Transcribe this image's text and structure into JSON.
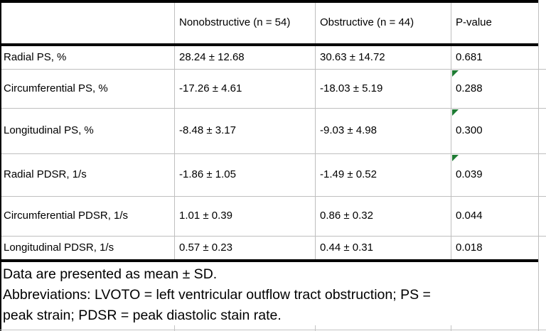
{
  "table": {
    "header": {
      "col0": "",
      "col1": "Nonobstructive (n = 54)",
      "col2": "Obstructive (n = 44)",
      "col3": "P-value"
    },
    "rows": [
      {
        "label": "Radial PS, %",
        "nonobstructive": "28.24 ± 12.68",
        "obstructive": "30.63 ± 14.72",
        "p_value": "0.681",
        "flagged": false
      },
      {
        "label": "Circumferential PS, %",
        "nonobstructive": "-17.26 ± 4.61",
        "obstructive": "-18.03 ± 5.19",
        "p_value": "0.288",
        "flagged": true
      },
      {
        "label": "Longitudinal PS, %",
        "nonobstructive": "-8.48 ± 3.17",
        "obstructive": "-9.03 ± 4.98",
        "p_value": "0.300",
        "flagged": true
      },
      {
        "label": "Radial PDSR, 1/s",
        "nonobstructive": "-1.86 ± 1.05",
        "obstructive": "-1.49 ± 0.52",
        "p_value": "0.039",
        "flagged": true
      },
      {
        "label": "Circumferential PDSR, 1/s",
        "nonobstructive": "1.01 ± 0.39",
        "obstructive": "0.86 ± 0.32",
        "p_value": "0.044",
        "flagged": false
      },
      {
        "label": "Longitudinal PDSR, 1/s",
        "nonobstructive": "0.57 ± 0.23",
        "obstructive": "0.44 ± 0.31",
        "p_value": "0.018",
        "flagged": false
      }
    ],
    "footnotes": {
      "lines": [
        "Data are presented as mean ± SD.",
        "Abbreviations: LVOTO = left ventricular outflow tract obstruction; PS =",
        "peak strain; PDSR = peak diastolic stain rate."
      ]
    }
  },
  "colors": {
    "flag_triangle": "#1e7b33",
    "gridline": "#bfbfbf",
    "thick_border": "#000000",
    "background": "#ffffff",
    "text": "#000000"
  }
}
